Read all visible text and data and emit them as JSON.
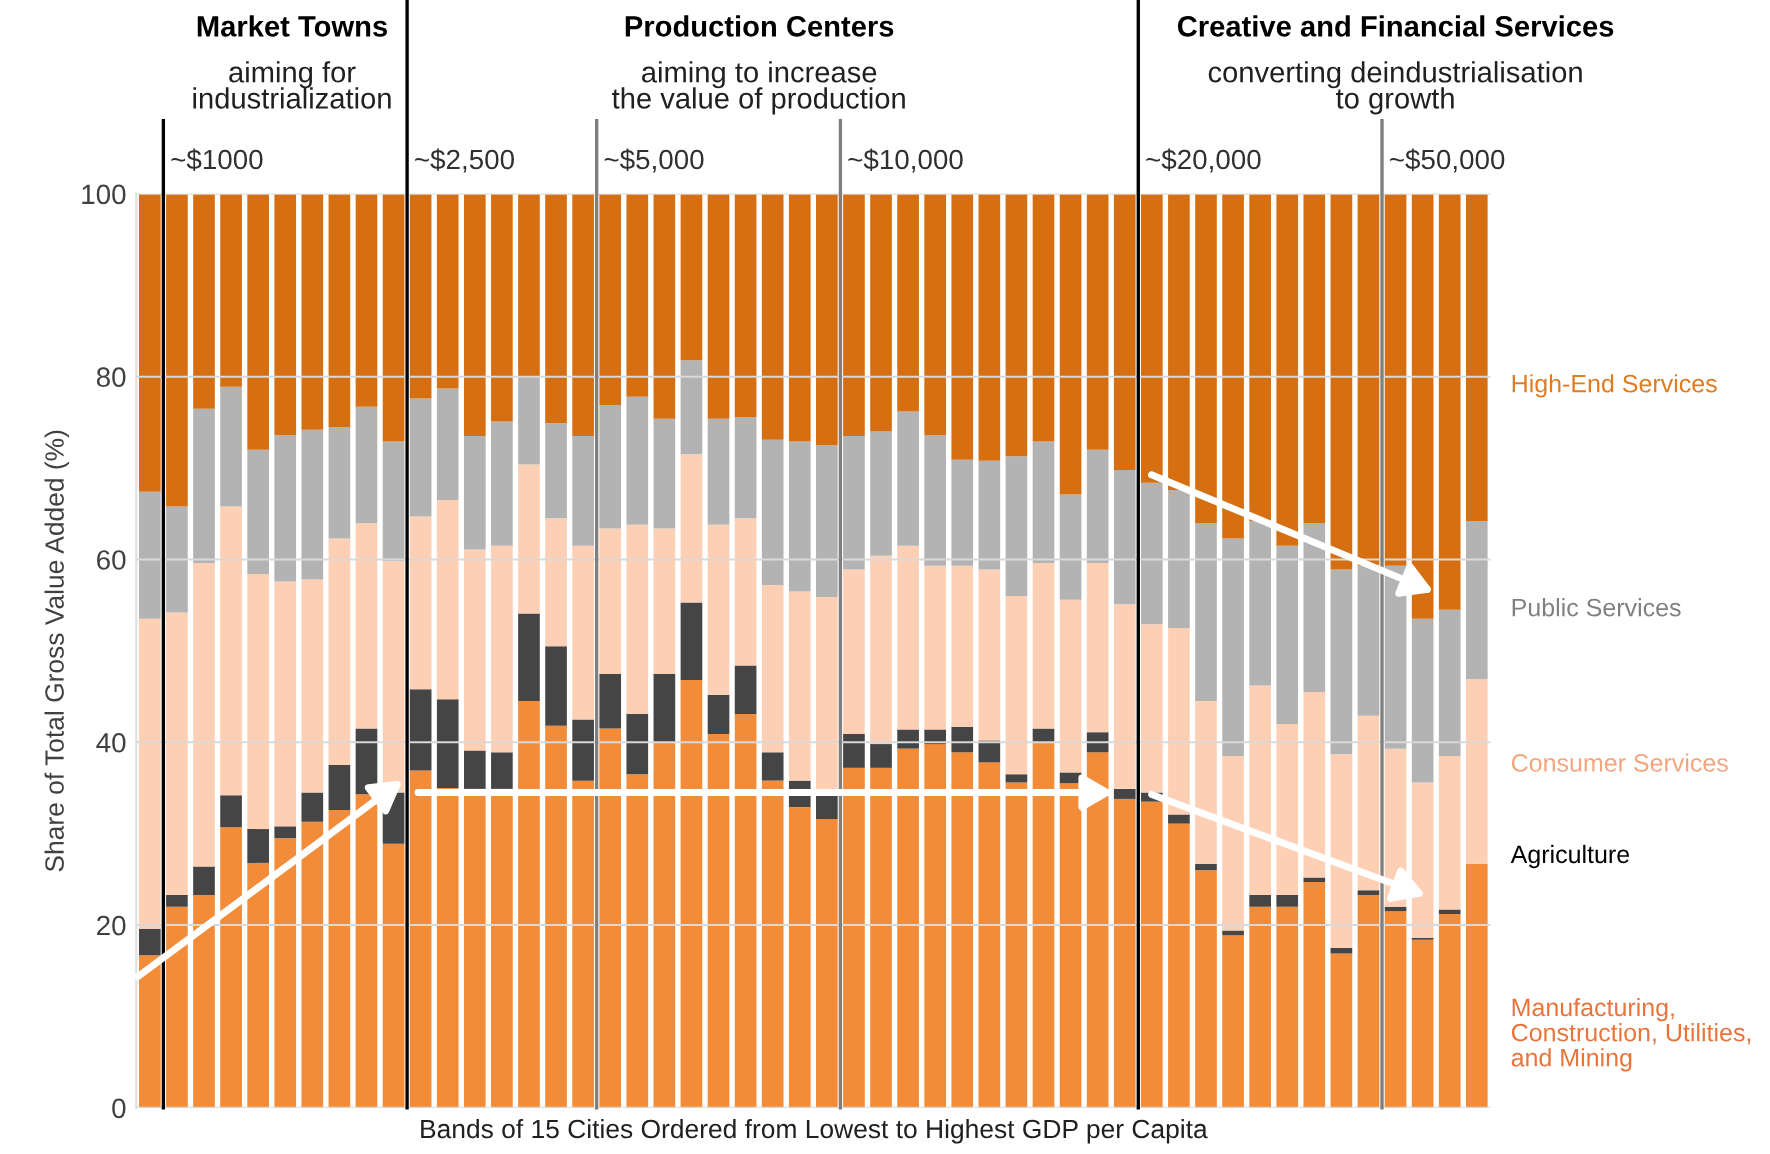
{
  "chart_data": {
    "type": "bar",
    "stacked": true,
    "categories": [
      null,
      null,
      null,
      null,
      null,
      null,
      null,
      null,
      null,
      null,
      null,
      null,
      null,
      null,
      null,
      null,
      null,
      null,
      null,
      null,
      null,
      null,
      null,
      null,
      null,
      null,
      null,
      null,
      null,
      null,
      null,
      null,
      null,
      null,
      null,
      null,
      null,
      null,
      null,
      null,
      null,
      null,
      null,
      null,
      null,
      null,
      null,
      null,
      null,
      null
    ],
    "xlabel": "Bands of 15 Cities Ordered from Lowest to Highest GDP per Capita",
    "ylabel": "Share of Total Gross Value Added (%)",
    "ylim": [
      0,
      100
    ],
    "yticks": [
      0,
      20,
      40,
      60,
      80,
      100
    ],
    "grid": "y",
    "series": [
      {
        "name": "Manufacturing,\nConstruction, Utilities,\nand Mining",
        "color": "#f28c38",
        "values": [
          16.7,
          22.0,
          23.3,
          30.7,
          26.8,
          29.5,
          31.3,
          32.6,
          34.3,
          28.9,
          36.9,
          35.0,
          34.9,
          34.9,
          44.5,
          41.8,
          35.8,
          41.5,
          36.5,
          40.0,
          46.8,
          40.9,
          43.1,
          35.8,
          32.9,
          31.6,
          37.2,
          37.2,
          39.3,
          39.8,
          38.9,
          37.8,
          35.6,
          39.9,
          35.5,
          38.9,
          33.8,
          33.5,
          31.1,
          26.0,
          18.9,
          22.0,
          22.0,
          24.7,
          16.9,
          23.3,
          21.5,
          18.4,
          21.2,
          26.7
        ]
      },
      {
        "name": "Agriculture",
        "color": "#454545",
        "values": [
          2.9,
          1.3,
          3.1,
          3.5,
          3.7,
          1.3,
          3.2,
          4.9,
          7.2,
          5.6,
          8.9,
          9.7,
          4.2,
          4.0,
          9.6,
          8.7,
          6.7,
          6.0,
          6.6,
          7.5,
          8.5,
          4.3,
          5.3,
          3.1,
          2.9,
          2.6,
          3.7,
          2.6,
          2.1,
          1.6,
          2.8,
          2.4,
          0.9,
          1.6,
          1.2,
          2.2,
          1.1,
          1.0,
          1.0,
          0.7,
          0.5,
          1.3,
          1.3,
          0.5,
          0.6,
          0.5,
          0.5,
          0.2,
          0.5,
          0
        ]
      },
      {
        "name": "Consumer Services",
        "color": "#fdd0b5",
        "values": [
          33.9,
          30.9,
          33.2,
          31.6,
          27.9,
          26.8,
          23.3,
          24.8,
          22.5,
          25.3,
          18.9,
          21.8,
          22.0,
          22.6,
          16.3,
          14.0,
          19.0,
          15.9,
          20.7,
          15.9,
          16.2,
          18.6,
          16.1,
          18.3,
          20.7,
          21.7,
          18.0,
          20.6,
          20.1,
          17.9,
          17.6,
          18.7,
          19.5,
          18.1,
          18.9,
          18.5,
          20.2,
          18.4,
          20.4,
          17.8,
          19.1,
          22.9,
          18.7,
          20.3,
          21.2,
          19.1,
          17.3,
          17.0,
          16.8,
          20.2
        ]
      },
      {
        "name": "Public Services",
        "color": "#b3b3b3",
        "values": [
          13.9,
          11.6,
          16.9,
          13.1,
          13.6,
          16.0,
          16.4,
          12.2,
          12.7,
          13.1,
          12.9,
          12.2,
          12.4,
          13.6,
          9.5,
          10.4,
          12.0,
          13.5,
          14.0,
          12.0,
          10.3,
          11.6,
          11.1,
          15.9,
          16.4,
          16.6,
          14.6,
          13.6,
          14.7,
          14.3,
          11.6,
          11.9,
          15.3,
          13.3,
          11.5,
          12.4,
          14.7,
          15.5,
          15.1,
          19.5,
          23.8,
          18.0,
          19.5,
          18.5,
          20.2,
          16.4,
          20.0,
          17.9,
          16.0,
          17.3
        ]
      },
      {
        "name": "High-End Services",
        "color": "#d66f12",
        "values": [
          32.6,
          34.2,
          23.5,
          21.1,
          28.0,
          26.4,
          25.8,
          25.5,
          23.3,
          27.1,
          22.4,
          21.3,
          26.5,
          24.9,
          20.1,
          25.1,
          26.5,
          23.1,
          22.2,
          24.6,
          18.2,
          24.6,
          24.4,
          26.9,
          27.1,
          27.5,
          26.5,
          26.0,
          23.8,
          26.4,
          29.1,
          29.2,
          28.7,
          27.1,
          32.9,
          28.0,
          30.2,
          31.6,
          32.4,
          36.0,
          37.7,
          35.8,
          38.5,
          36.0,
          41.1,
          40.7,
          40.7,
          46.5,
          45.5,
          35.8
        ]
      }
    ],
    "annotations": [
      "~$1000",
      "~$2,500",
      "~$5,000",
      "~$10,000",
      "~$20,000",
      "~$50,000",
      "Market Towns\naiming for\nindustrialization",
      "Production Centers\naiming to increase\nthe value of production",
      "Creative and Financial Services\nconverting deindustrialisation\nto growth"
    ]
  }
}
